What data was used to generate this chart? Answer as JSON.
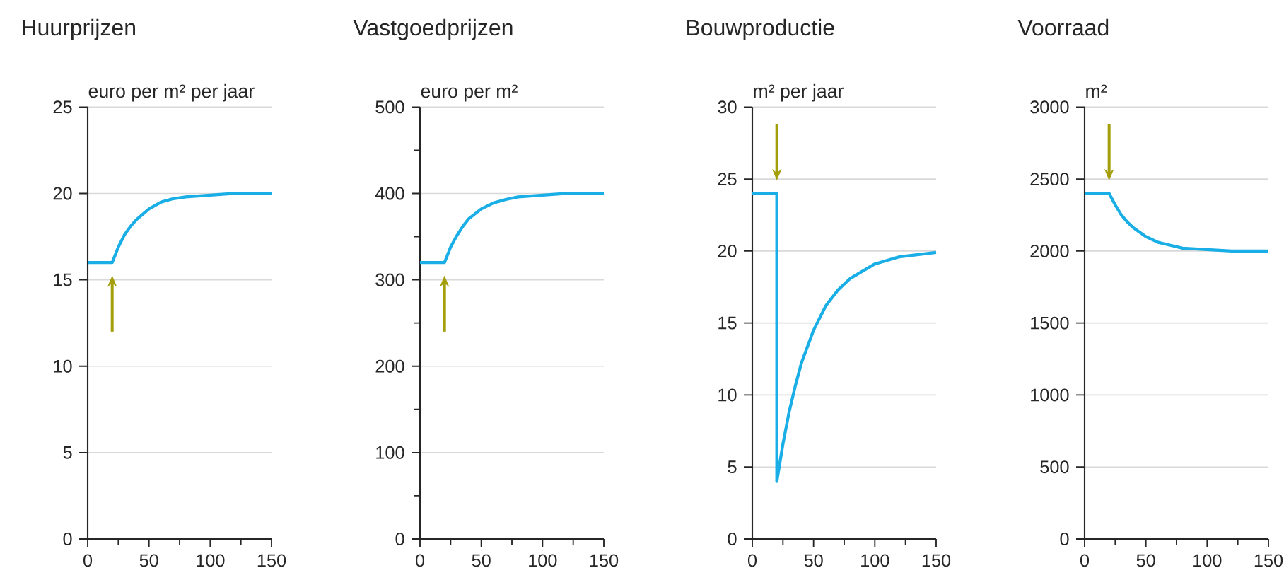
{
  "chart_data": [
    {
      "type": "line",
      "title": "Huurprijzen",
      "ylabel": "euro per m² per jaar",
      "x": [
        0,
        20,
        25,
        30,
        35,
        40,
        50,
        60,
        70,
        80,
        100,
        120,
        150
      ],
      "values": [
        16,
        16,
        16.9,
        17.6,
        18.1,
        18.5,
        19.1,
        19.5,
        19.7,
        19.8,
        19.9,
        20,
        20
      ],
      "color": "#19aee6",
      "xlim": [
        0,
        150
      ],
      "ylim": [
        0,
        25
      ],
      "xticks": [
        0,
        {
          "value": 25,
          "label": null
        },
        50,
        {
          "value": 75,
          "label": null
        },
        100,
        {
          "value": 125,
          "label": null
        },
        150
      ],
      "yticks": [
        0,
        5,
        10,
        15,
        20,
        25
      ],
      "grid": "y"
    },
    {
      "type": "line",
      "title": "Vastgoedprijzen",
      "ylabel": "euro per m²",
      "x": [
        0,
        20,
        25,
        30,
        35,
        40,
        50,
        60,
        70,
        80,
        100,
        120,
        150
      ],
      "values": [
        320,
        320,
        338,
        351,
        362,
        371,
        382,
        389,
        393,
        396,
        398,
        400,
        400
      ],
      "color": "#19aee6",
      "xlim": [
        0,
        150
      ],
      "ylim": [
        0,
        500
      ],
      "xticks": [
        0,
        {
          "value": 25,
          "label": null
        },
        50,
        {
          "value": 75,
          "label": null
        },
        100,
        {
          "value": 125,
          "label": null
        },
        150
      ],
      "yticks": [
        0,
        {
          "value": 50,
          "label": null
        },
        100,
        {
          "value": 150,
          "label": null
        },
        200,
        {
          "value": 250,
          "label": null
        },
        300,
        {
          "value": 350,
          "label": null
        },
        400,
        {
          "value": 450,
          "label": null
        },
        500
      ],
      "grid": "y"
    },
    {
      "type": "line",
      "title": "Bouwproductie",
      "ylabel": "m² per jaar",
      "x": [
        0,
        20,
        20,
        25,
        30,
        35,
        40,
        50,
        60,
        70,
        80,
        100,
        120,
        150
      ],
      "values": [
        24,
        24,
        4,
        6.6,
        8.8,
        10.6,
        12.2,
        14.5,
        16.2,
        17.3,
        18.1,
        19.1,
        19.6,
        19.9
      ],
      "color": "#19aee6",
      "xlim": [
        0,
        150
      ],
      "ylim": [
        0,
        30
      ],
      "xticks": [
        0,
        {
          "value": 25,
          "label": null
        },
        50,
        {
          "value": 75,
          "label": null
        },
        100,
        {
          "value": 125,
          "label": null
        },
        150
      ],
      "yticks": [
        0,
        5,
        10,
        15,
        20,
        25,
        30
      ],
      "grid": "y"
    },
    {
      "type": "line",
      "title": "Voorraad",
      "ylabel": "m²",
      "x": [
        0,
        20,
        25,
        30,
        35,
        40,
        50,
        60,
        70,
        80,
        100,
        120,
        150
      ],
      "values": [
        2400,
        2400,
        2320,
        2250,
        2200,
        2160,
        2100,
        2060,
        2040,
        2020,
        2010,
        2000,
        2000
      ],
      "color": "#19aee6",
      "xlim": [
        0,
        150
      ],
      "ylim": [
        0,
        3000
      ],
      "xticks": [
        0,
        {
          "value": 25,
          "label": null
        },
        50,
        {
          "value": 75,
          "label": null
        },
        100,
        {
          "value": 125,
          "label": null
        },
        150
      ],
      "yticks": [
        0,
        500,
        1000,
        1500,
        2000,
        2500,
        3000
      ],
      "grid": "y"
    }
  ]
}
